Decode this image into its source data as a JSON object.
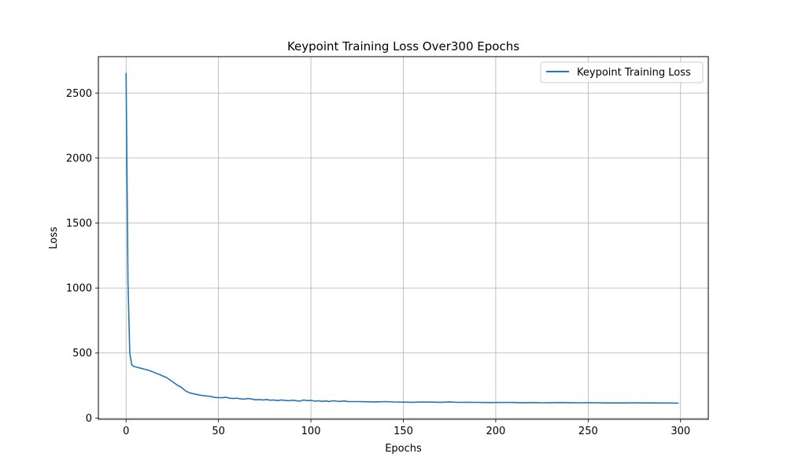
{
  "chart_data": {
    "type": "line",
    "title": "Keypoint Training Loss Over300 Epochs",
    "xlabel": "Epochs",
    "ylabel": "Loss",
    "xlim": [
      -15,
      315
    ],
    "ylim": [
      -10,
      2780
    ],
    "xticks": [
      0,
      50,
      100,
      150,
      200,
      250,
      300
    ],
    "yticks": [
      0,
      500,
      1000,
      1500,
      2000,
      2500
    ],
    "grid": true,
    "legend_position": "top-right",
    "series": [
      {
        "name": "Keypoint Training Loss",
        "color": "#1f77b4",
        "x": [
          0,
          1,
          2,
          3,
          4,
          5,
          6,
          8,
          10,
          12,
          14,
          16,
          18,
          20,
          22,
          24,
          26,
          28,
          30,
          32,
          34,
          36,
          38,
          40,
          42,
          44,
          46,
          48,
          50,
          52,
          54,
          56,
          58,
          60,
          62,
          64,
          66,
          68,
          70,
          72,
          74,
          76,
          78,
          80,
          82,
          84,
          86,
          88,
          90,
          92,
          94,
          96,
          98,
          100,
          102,
          104,
          106,
          108,
          110,
          112,
          114,
          116,
          118,
          120,
          125,
          130,
          135,
          140,
          145,
          150,
          155,
          160,
          165,
          170,
          175,
          180,
          185,
          190,
          195,
          200,
          205,
          210,
          215,
          220,
          225,
          230,
          235,
          240,
          245,
          250,
          255,
          260,
          265,
          270,
          275,
          280,
          285,
          290,
          295,
          299
        ],
        "y": [
          2655,
          1050,
          500,
          410,
          398,
          393,
          390,
          382,
          375,
          368,
          358,
          345,
          335,
          322,
          310,
          290,
          270,
          250,
          235,
          210,
          195,
          188,
          182,
          176,
          172,
          168,
          165,
          158,
          157,
          156,
          160,
          152,
          150,
          152,
          147,
          145,
          150,
          146,
          140,
          142,
          139,
          142,
          137,
          138,
          134,
          139,
          136,
          132,
          137,
          133,
          130,
          138,
          134,
          136,
          130,
          132,
          128,
          131,
          127,
          133,
          129,
          128,
          131,
          127,
          126,
          125,
          124,
          126,
          123,
          122,
          121,
          123,
          122,
          121,
          124,
          120,
          121,
          120,
          119,
          119,
          120,
          119,
          118,
          119,
          117,
          118,
          119,
          118,
          117,
          118,
          117,
          116,
          116,
          116,
          117,
          116,
          116,
          115,
          115,
          114
        ]
      }
    ]
  }
}
